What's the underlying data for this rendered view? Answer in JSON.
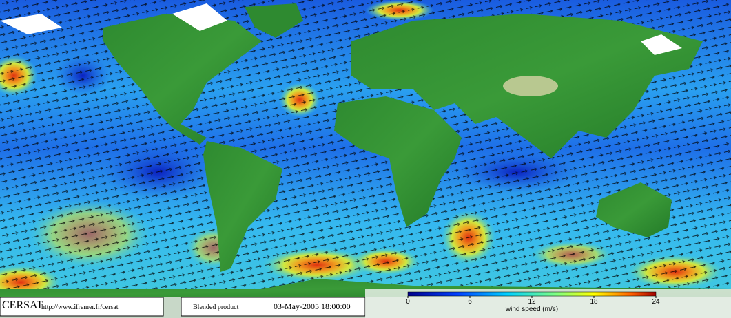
{
  "header": {
    "logo": "CERSAT",
    "url": "http://www.ifremer.fr/cersat"
  },
  "product": {
    "label": "Blended product",
    "datetime": "03-May-2005 18:00:00"
  },
  "colorbar": {
    "label": "wind speed (m/s)",
    "range": [
      0,
      24
    ],
    "ticks": [
      0,
      6,
      12,
      18,
      24
    ]
  }
}
